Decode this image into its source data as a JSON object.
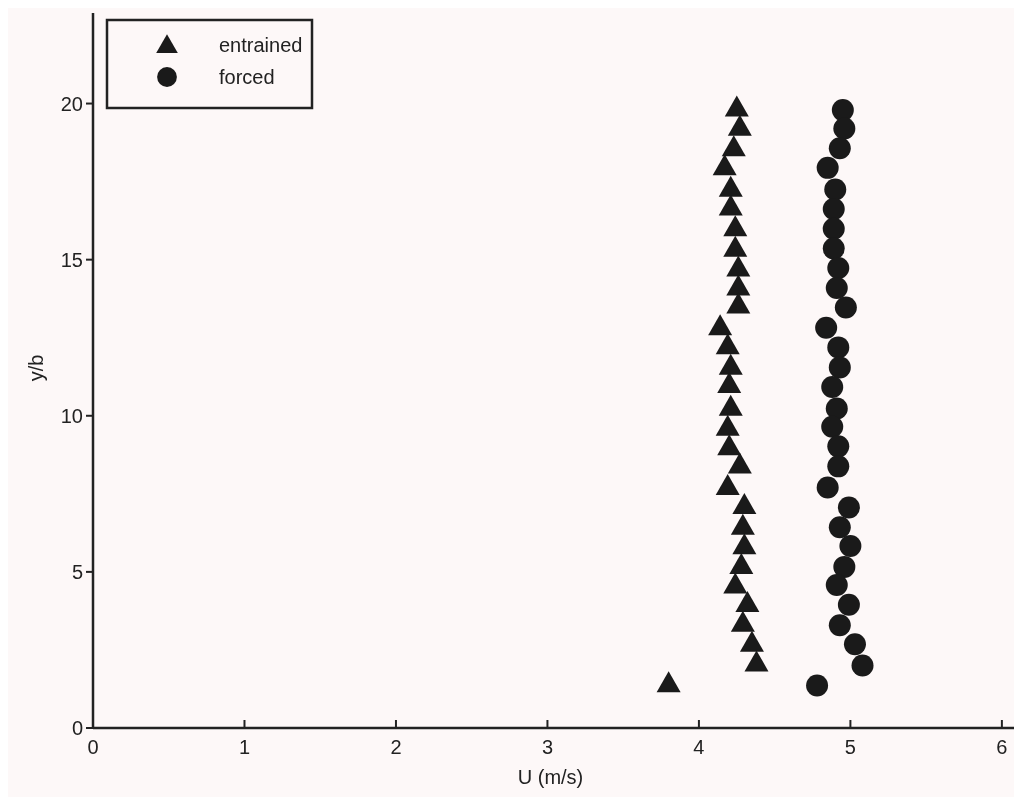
{
  "chart_data": {
    "type": "scatter",
    "xlabel": "U (m/s)",
    "ylabel": "y/b",
    "xlim": [
      0,
      6.08
    ],
    "ylim": [
      0,
      22.9
    ],
    "xticks": [
      0,
      1,
      2,
      3,
      4,
      5,
      6
    ],
    "yticks": [
      0,
      5,
      10,
      15,
      20
    ],
    "grid": false,
    "legend": "top left",
    "series": [
      {
        "name": "entrained",
        "color": "#1a1a1a",
        "marker": "triangle",
        "x": [
          4.25,
          4.27,
          4.23,
          4.17,
          4.21,
          4.21,
          4.24,
          4.24,
          4.26,
          4.26,
          4.26,
          4.14,
          4.19,
          4.21,
          4.2,
          4.21,
          4.19,
          4.2,
          4.27,
          4.19,
          4.3,
          4.29,
          4.3,
          4.28,
          4.24,
          4.32,
          4.29,
          4.35,
          4.38,
          3.8
        ],
        "values": [
          19.87,
          19.26,
          18.6,
          17.99,
          17.3,
          16.7,
          16.04,
          15.38,
          14.75,
          14.14,
          13.56,
          12.87,
          12.26,
          11.6,
          11.02,
          10.29,
          9.65,
          9.02,
          8.44,
          7.75,
          7.14,
          6.48,
          5.85,
          5.22,
          4.6,
          4.0,
          3.37,
          2.73,
          2.1,
          1.43
        ]
      },
      {
        "name": "forced",
        "color": "#1a1a1a",
        "marker": "circle",
        "x": [
          4.95,
          4.96,
          4.93,
          4.85,
          4.9,
          4.89,
          4.89,
          4.89,
          4.92,
          4.91,
          4.97,
          4.84,
          4.92,
          4.93,
          4.88,
          4.91,
          4.88,
          4.92,
          4.92,
          4.85,
          4.99,
          4.93,
          5.0,
          4.96,
          4.91,
          4.99,
          4.93,
          5.03,
          5.08,
          4.78
        ],
        "values": [
          19.79,
          19.2,
          18.57,
          17.94,
          17.25,
          16.62,
          15.99,
          15.36,
          14.73,
          14.09,
          13.47,
          12.82,
          12.19,
          11.55,
          10.92,
          10.23,
          9.65,
          9.02,
          8.38,
          7.7,
          7.06,
          6.43,
          5.83,
          5.16,
          4.58,
          3.95,
          3.29,
          2.68,
          2.0,
          1.36
        ]
      }
    ]
  }
}
